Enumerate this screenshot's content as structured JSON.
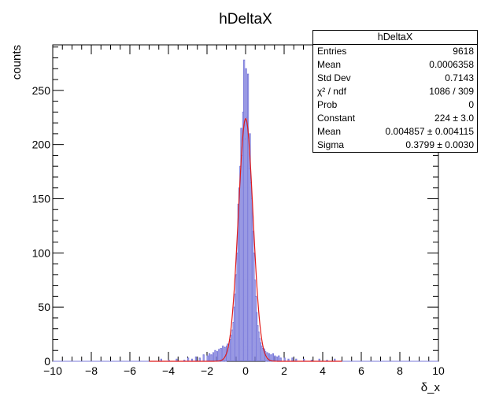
{
  "chart_data": {
    "type": "histogram",
    "title": "hDeltaX",
    "xlabel": "δ_x",
    "ylabel": "counts",
    "xlim": [
      -10,
      10
    ],
    "ylim": [
      0,
      292
    ],
    "x_ticks": [
      "−10",
      "−8",
      "−6",
      "−4",
      "−2",
      "0",
      "2",
      "4",
      "6",
      "8",
      "10"
    ],
    "y_ticks": [
      "0",
      "50",
      "100",
      "150",
      "200",
      "250"
    ],
    "x_tick_values": [
      -10,
      -8,
      -6,
      -4,
      -2,
      0,
      2,
      4,
      6,
      8,
      10
    ],
    "y_tick_values": [
      0,
      50,
      100,
      150,
      200,
      250
    ],
    "series": [
      {
        "kind": "histogram",
        "color": "#7b7bdb",
        "bins": [
          [
            -4.4,
            2
          ],
          [
            -4.0,
            1
          ],
          [
            -3.6,
            2
          ],
          [
            -3.2,
            1
          ],
          [
            -3.0,
            3
          ],
          [
            -2.8,
            2
          ],
          [
            -2.6,
            4
          ],
          [
            -2.4,
            3
          ],
          [
            -2.2,
            6
          ],
          [
            -2.0,
            5
          ],
          [
            -1.9,
            7
          ],
          [
            -1.8,
            6
          ],
          [
            -1.7,
            8
          ],
          [
            -1.6,
            10
          ],
          [
            -1.5,
            9
          ],
          [
            -1.4,
            11
          ],
          [
            -1.3,
            12
          ],
          [
            -1.2,
            14
          ],
          [
            -1.1,
            13
          ],
          [
            -1.0,
            14
          ],
          [
            -0.95,
            16
          ],
          [
            -0.9,
            13
          ],
          [
            -0.85,
            18
          ],
          [
            -0.8,
            20
          ],
          [
            -0.75,
            24
          ],
          [
            -0.7,
            29
          ],
          [
            -0.65,
            36
          ],
          [
            -0.6,
            50
          ],
          [
            -0.55,
            62
          ],
          [
            -0.5,
            80
          ],
          [
            -0.45,
            100
          ],
          [
            -0.4,
            145
          ],
          [
            -0.35,
            160
          ],
          [
            -0.3,
            180
          ],
          [
            -0.25,
            215
          ],
          [
            -0.2,
            190
          ],
          [
            -0.15,
            230
          ],
          [
            -0.1,
            278
          ],
          [
            -0.05,
            205
          ],
          [
            0.0,
            270
          ],
          [
            0.05,
            225
          ],
          [
            0.1,
            265
          ],
          [
            0.15,
            178
          ],
          [
            0.2,
            210
          ],
          [
            0.25,
            165
          ],
          [
            0.3,
            150
          ],
          [
            0.35,
            120
          ],
          [
            0.4,
            100
          ],
          [
            0.45,
            75
          ],
          [
            0.5,
            60
          ],
          [
            0.55,
            45
          ],
          [
            0.6,
            33
          ],
          [
            0.65,
            27
          ],
          [
            0.7,
            21
          ],
          [
            0.75,
            17
          ],
          [
            0.8,
            14
          ],
          [
            0.85,
            12
          ],
          [
            0.9,
            12
          ],
          [
            0.95,
            11
          ],
          [
            1.0,
            9
          ],
          [
            1.1,
            8
          ],
          [
            1.2,
            7
          ],
          [
            1.3,
            6
          ],
          [
            1.4,
            7
          ],
          [
            1.5,
            5
          ],
          [
            1.6,
            4
          ],
          [
            1.7,
            5
          ],
          [
            1.8,
            3
          ],
          [
            2.0,
            3
          ],
          [
            2.2,
            2
          ],
          [
            2.4,
            3
          ],
          [
            2.6,
            2
          ],
          [
            3.0,
            2
          ],
          [
            3.4,
            1
          ],
          [
            3.8,
            2
          ],
          [
            4.2,
            1
          ],
          [
            4.6,
            2
          ]
        ]
      },
      {
        "kind": "gaussian-fit",
        "color": "#e01b1b",
        "constant": 224,
        "mean": 0.004857,
        "sigma": 0.3799
      }
    ],
    "stats_box": {
      "title": "hDeltaX",
      "rows": [
        {
          "label": "Entries",
          "value": "9618"
        },
        {
          "label": "Mean",
          "value": "0.0006358"
        },
        {
          "label": "Std Dev",
          "value": "0.7143"
        },
        {
          "label": "χ² / ndf",
          "value": "1086 / 309"
        },
        {
          "label": "Prob",
          "value": "0"
        },
        {
          "label": "Constant",
          "value": "224 ± 3.0"
        },
        {
          "label": "Mean",
          "value": "0.004857 ± 0.004115"
        },
        {
          "label": "Sigma",
          "value": "0.3799 ± 0.0030"
        }
      ]
    }
  }
}
